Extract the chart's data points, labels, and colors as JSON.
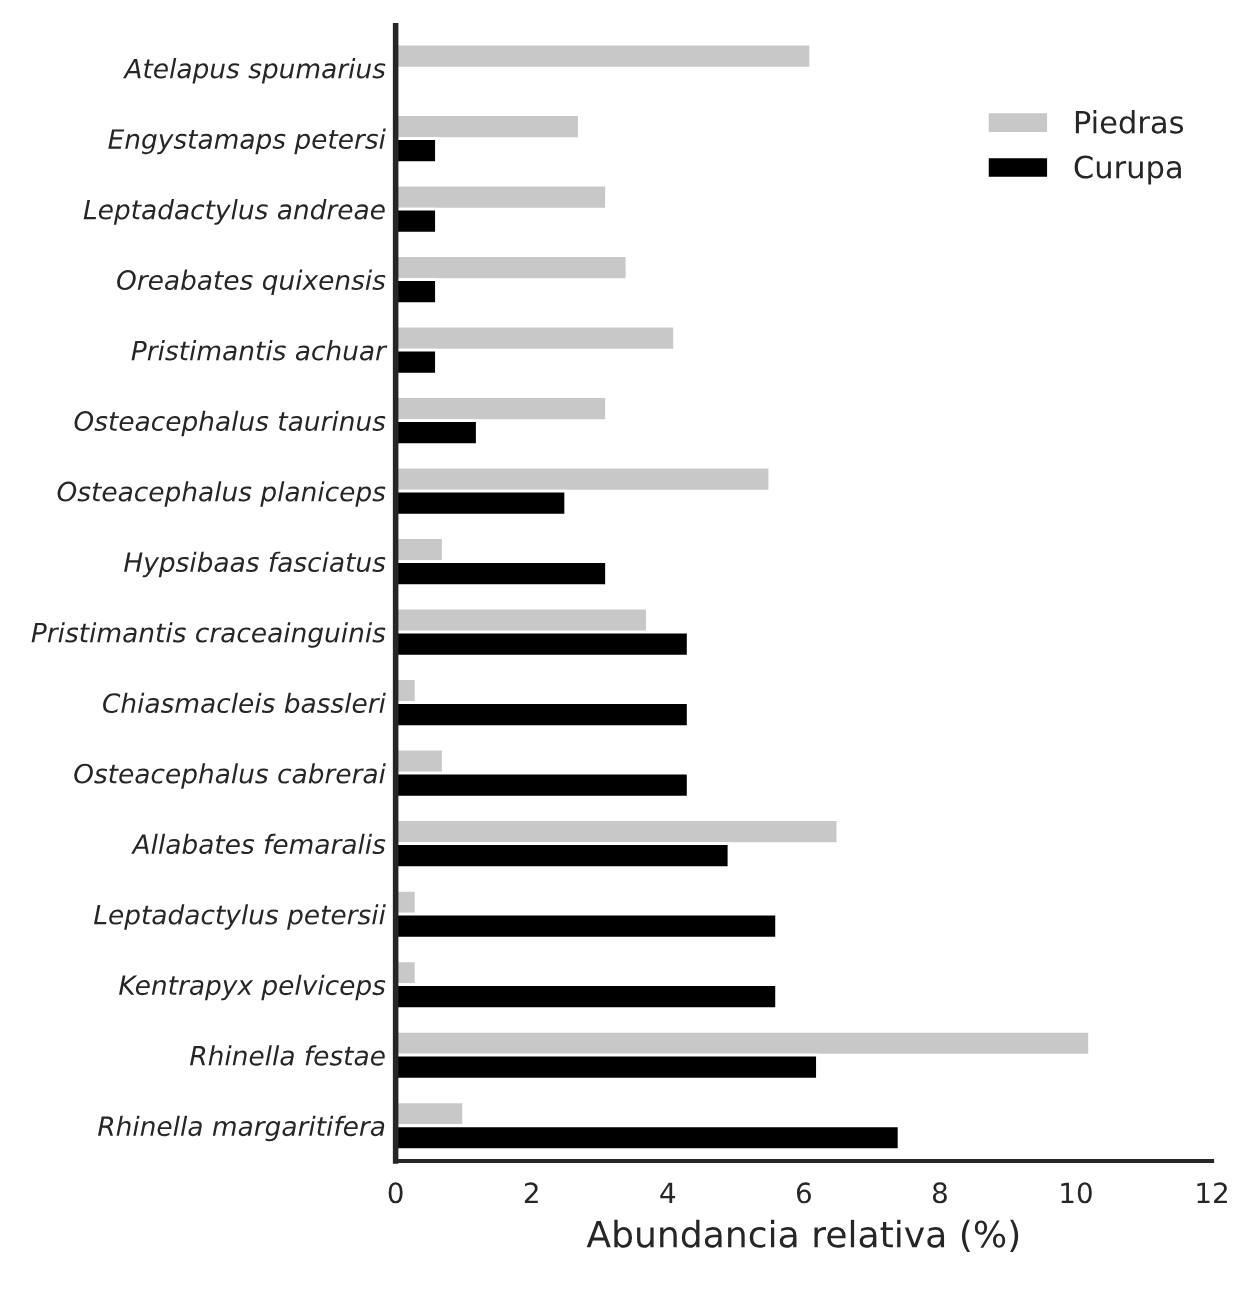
{
  "chart_data": {
    "type": "bar",
    "orientation": "horizontal",
    "xlabel": "Abundancia relativa (%)",
    "categories": [
      "Atelapus spumarius",
      "Engystamaps petersi",
      "Leptadactylus andreae",
      "Oreabates quixensis",
      "Pristimantis achuar",
      "Osteacephalus taurinus",
      "Osteacephalus planiceps",
      "Hypsibaas fasciatus",
      "Pristimantis craceainguinis",
      "Chiasmacleis bassleri",
      "Osteacephalus cabrerai",
      "Allabates femaralis",
      "Leptadactylus petersii",
      "Kentrapyx pelviceps",
      "Rhinella festae",
      "Rhinella margaritifera"
    ],
    "series": [
      {
        "name": "Piedras",
        "color": "#c8c8c8",
        "values": [
          6.1,
          2.7,
          3.1,
          3.4,
          4.1,
          3.1,
          5.5,
          0.7,
          3.7,
          0.3,
          0.7,
          6.5,
          0.3,
          0.3,
          10.2,
          1.0
        ]
      },
      {
        "name": "Curupa",
        "color": "#000000",
        "values": [
          null,
          0.6,
          0.6,
          0.6,
          0.6,
          1.2,
          2.5,
          3.1,
          4.3,
          4.3,
          4.3,
          4.9,
          5.6,
          5.6,
          6.2,
          7.4
        ]
      }
    ],
    "xlim": [
      0,
      12
    ],
    "xticks": [
      0,
      2,
      4,
      6,
      8,
      10,
      12
    ],
    "legend": "top right",
    "grid": false
  }
}
